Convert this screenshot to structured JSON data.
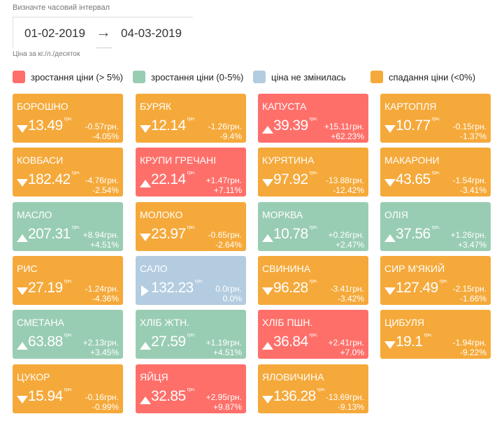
{
  "header": {
    "interval_label": "Визначте часовий інтервал",
    "date_from": "01-02-2019",
    "date_to": "04-03-2019",
    "arrow": "→",
    "unit_note": "Ціна за кг./л./десяток"
  },
  "legend": [
    {
      "label": "зростання ціни (> 5%)",
      "color": "#FF6F6A"
    },
    {
      "label": "зростання ціни (0-5%)",
      "color": "#99CDB3"
    },
    {
      "label": "ціна не змінилась",
      "color": "#B3CCE0"
    },
    {
      "label": "спадання ціни (<0%)",
      "color": "#F5A93A"
    }
  ],
  "currency": "грн.",
  "items": [
    {
      "name": "БОРОШНО",
      "price": "13.49",
      "delta": "-0.57грн.",
      "pct": "-4.05%",
      "dir": "down",
      "color": "#F5A93A"
    },
    {
      "name": "БУРЯК",
      "price": "12.14",
      "delta": "-1.26грн.",
      "pct": "-9.4%",
      "dir": "down",
      "color": "#F5A93A"
    },
    {
      "name": "КАПУСТА",
      "price": "39.39",
      "delta": "+15.11грн.",
      "pct": "+62.23%",
      "dir": "up",
      "color": "#FF6F6A"
    },
    {
      "name": "КАРТОПЛЯ",
      "price": "10.77",
      "delta": "-0.15грн.",
      "pct": "-1.37%",
      "dir": "down",
      "color": "#F5A93A"
    },
    {
      "name": "КОВБАСИ",
      "price": "182.42",
      "delta": "-4.76грн.",
      "pct": "-2.54%",
      "dir": "down",
      "color": "#F5A93A"
    },
    {
      "name": "КРУПИ ГРЕЧАНІ",
      "price": "22.14",
      "delta": "+1.47грн.",
      "pct": "+7.11%",
      "dir": "up",
      "color": "#FF6F6A"
    },
    {
      "name": "КУРЯТИНА",
      "price": "97.92",
      "delta": "-13.88грн.",
      "pct": "-12.42%",
      "dir": "down",
      "color": "#F5A93A"
    },
    {
      "name": "МАКАРОНИ",
      "price": "43.65",
      "delta": "-1.54грн.",
      "pct": "-3.41%",
      "dir": "down",
      "color": "#F5A93A"
    },
    {
      "name": "МАСЛО",
      "price": "207.31",
      "delta": "+8.94грн.",
      "pct": "+4.51%",
      "dir": "up",
      "color": "#99CDB3"
    },
    {
      "name": "МОЛОКО",
      "price": "23.97",
      "delta": "-0.65грн.",
      "pct": "-2.64%",
      "dir": "down",
      "color": "#F5A93A"
    },
    {
      "name": "МОРКВА",
      "price": "10.78",
      "delta": "+0.26грн.",
      "pct": "+2.47%",
      "dir": "up",
      "color": "#99CDB3"
    },
    {
      "name": "ОЛІЯ",
      "price": "37.56",
      "delta": "+1.26грн.",
      "pct": "+3.47%",
      "dir": "up",
      "color": "#99CDB3"
    },
    {
      "name": "РИС",
      "price": "27.19",
      "delta": "-1.24грн.",
      "pct": "-4.36%",
      "dir": "down",
      "color": "#F5A93A"
    },
    {
      "name": "САЛО",
      "price": "132.23",
      "delta": "0.0грн.",
      "pct": "0.0%",
      "dir": "right",
      "color": "#B3CCE0"
    },
    {
      "name": "СВИНИНА",
      "price": "96.28",
      "delta": "-3.41грн.",
      "pct": "-3.42%",
      "dir": "down",
      "color": "#F5A93A"
    },
    {
      "name": "СИР М'ЯКИЙ",
      "price": "127.49",
      "delta": "-2.15грн.",
      "pct": "-1.66%",
      "dir": "down",
      "color": "#F5A93A"
    },
    {
      "name": "СМЕТАНА",
      "price": "63.88",
      "delta": "+2.13грн.",
      "pct": "+3.45%",
      "dir": "up",
      "color": "#99CDB3"
    },
    {
      "name": "ХЛІБ ЖТН.",
      "price": "27.59",
      "delta": "+1.19грн.",
      "pct": "+4.51%",
      "dir": "up",
      "color": "#99CDB3"
    },
    {
      "name": "ХЛІБ ПШН.",
      "price": "36.84",
      "delta": "+2.41грн.",
      "pct": "+7.0%",
      "dir": "up",
      "color": "#FF6F6A"
    },
    {
      "name": "ЦИБУЛЯ",
      "price": "19.1",
      "delta": "-1.94грн.",
      "pct": "-9.22%",
      "dir": "down",
      "color": "#F5A93A"
    },
    {
      "name": "ЦУКОР",
      "price": "15.94",
      "delta": "-0.16грн.",
      "pct": "-0.99%",
      "dir": "down",
      "color": "#F5A93A"
    },
    {
      "name": "ЯЙЦЯ",
      "price": "32.85",
      "delta": "+2.95грн.",
      "pct": "+9.87%",
      "dir": "up",
      "color": "#FF6F6A"
    },
    {
      "name": "ЯЛОВИЧИНА",
      "price": "136.28",
      "delta": "-13.69грн.",
      "pct": "-9.13%",
      "dir": "down",
      "color": "#F5A93A"
    }
  ]
}
